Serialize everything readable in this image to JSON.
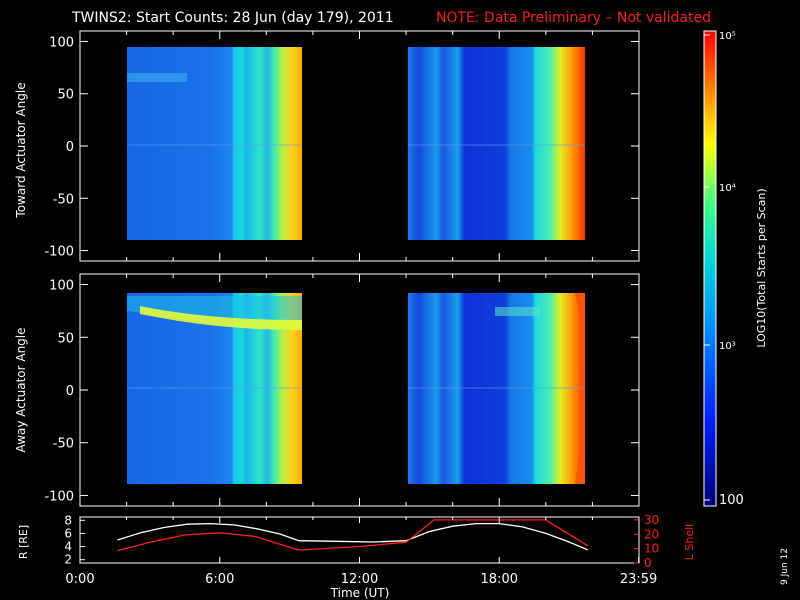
{
  "header": {
    "title": "TWINS2: Start Counts: 28 Jun (day 179), 2011",
    "note": "NOTE: Data Preliminary – Not validated"
  },
  "footer": {
    "date_stamp": "9 Jun 12"
  },
  "colorbar": {
    "label": "LOG10(Total Starts per Scan)",
    "ticks": [
      "10⁵",
      "10⁴",
      "10³",
      "100"
    ]
  },
  "chart_data": [
    {
      "type": "heatmap",
      "ylabel": "Toward Actuator Angle",
      "ylim": [
        -110,
        110
      ],
      "yticks": [
        100,
        50,
        0,
        -50,
        -100
      ],
      "xlim": [
        0,
        24
      ],
      "xticks": [
        "0:00",
        "6:00",
        "12:00",
        "18:00",
        "23:59"
      ],
      "data_gaps": [
        [
          9.4,
          14.0
        ],
        [
          21.8,
          24
        ]
      ],
      "angle_range": [
        -88,
        90
      ]
    },
    {
      "type": "heatmap",
      "ylabel": "Away Actuator Angle",
      "ylim": [
        -110,
        110
      ],
      "yticks": [
        100,
        50,
        0,
        -50,
        -100
      ],
      "xlim": [
        0,
        24
      ],
      "xticks": [
        "0:00",
        "6:00",
        "12:00",
        "18:00",
        "23:59"
      ],
      "data_gaps": [
        [
          9.4,
          14.0
        ],
        [
          21.8,
          24
        ]
      ],
      "angle_range": [
        -88,
        90
      ]
    },
    {
      "type": "line",
      "xlabel": "Time (UT)",
      "xticks": [
        "0:00",
        "6:00",
        "12:00",
        "18:00",
        "23:59"
      ],
      "ylabel_left": "R [RE]",
      "ylabel_right": "L Shell",
      "yticks_left": [
        8,
        6,
        4,
        2
      ],
      "yticks_right": [
        30,
        20,
        10,
        0
      ],
      "series": [
        {
          "name": "R [RE]",
          "color": "#ffffff",
          "x": [
            1.6,
            2.6,
            3.6,
            4.6,
            5.6,
            6.6,
            7.6,
            8.6,
            9.4,
            11,
            12.6,
            14,
            15,
            16,
            17,
            18,
            19,
            20,
            21,
            21.8
          ],
          "y": [
            5.0,
            6.1,
            6.9,
            7.4,
            7.5,
            7.3,
            6.7,
            5.9,
            4.9,
            4.8,
            4.7,
            4.9,
            6.3,
            7.1,
            7.5,
            7.5,
            7.0,
            6.0,
            4.7,
            3.5
          ]
        },
        {
          "name": "L Shell",
          "color": "#ff2020",
          "x": [
            1.6,
            3,
            4.5,
            6,
            7.5,
            9.4,
            12,
            14,
            15.2,
            20.0,
            21.8
          ],
          "y": [
            8.5,
            14.5,
            19.5,
            21,
            18.5,
            9.0,
            11.5,
            14.5,
            30,
            30,
            12
          ]
        }
      ]
    }
  ]
}
